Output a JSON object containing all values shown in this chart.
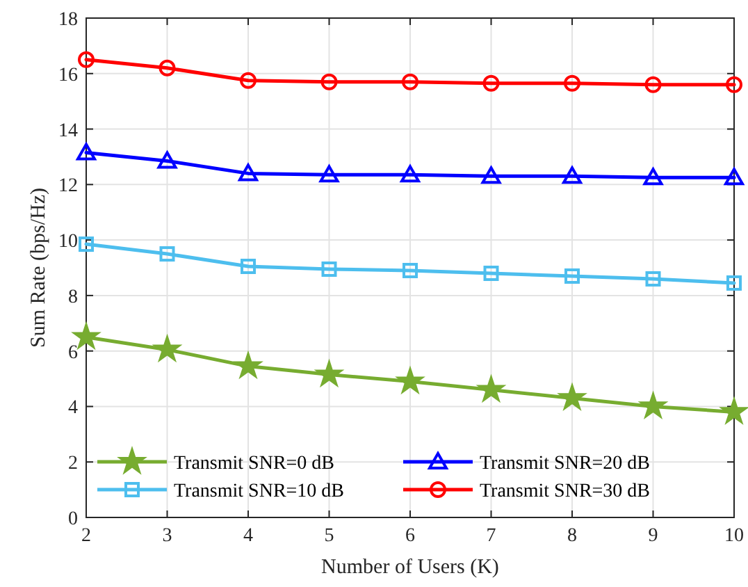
{
  "chart_data": {
    "type": "line",
    "xlabel": "Number of Users (K)",
    "ylabel": "Sum Rate (bps/Hz)",
    "x": [
      2,
      3,
      4,
      5,
      6,
      7,
      8,
      9,
      10
    ],
    "xlim": [
      2,
      10
    ],
    "xticks": [
      2,
      3,
      4,
      5,
      6,
      7,
      8,
      9,
      10
    ],
    "ylim": [
      0,
      18
    ],
    "yticks": [
      0,
      2,
      4,
      6,
      8,
      10,
      12,
      14,
      16,
      18
    ],
    "grid": true,
    "legend": "bottom",
    "line_style": "solid",
    "series": [
      {
        "name": "Transmit SNR=0 dB",
        "color": "#77ac30",
        "marker": "star",
        "values": [
          6.5,
          6.05,
          5.45,
          5.15,
          4.9,
          4.6,
          4.3,
          4.0,
          3.8
        ]
      },
      {
        "name": "Transmit SNR=10 dB",
        "color": "#4dbeee",
        "marker": "square",
        "values": [
          9.85,
          9.5,
          9.05,
          8.95,
          8.9,
          8.8,
          8.7,
          8.6,
          8.45
        ]
      },
      {
        "name": "Transmit SNR=20 dB",
        "color": "#0000ff",
        "marker": "triangle",
        "values": [
          13.15,
          12.85,
          12.4,
          12.35,
          12.35,
          12.3,
          12.3,
          12.25,
          12.25
        ]
      },
      {
        "name": "Transmit SNR=30 dB",
        "color": "#ff0000",
        "marker": "circle",
        "values": [
          16.5,
          16.2,
          15.75,
          15.7,
          15.7,
          15.65,
          15.65,
          15.6,
          15.6
        ]
      }
    ]
  }
}
